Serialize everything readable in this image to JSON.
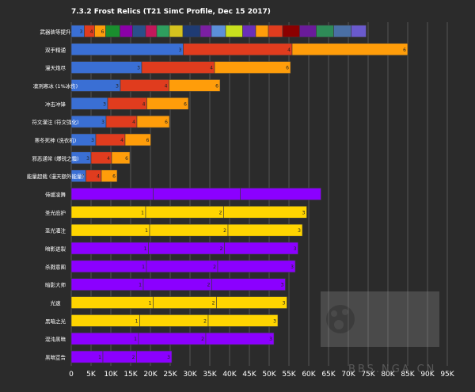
{
  "chart_data": {
    "type": "bar",
    "orientation": "horizontal",
    "stacked": true,
    "title": "7.3.2 Frost Relics (T21 SimC Profile, Dec 15 2017)",
    "xlabel": "",
    "ylabel": "",
    "xlim": [
      0,
      95000
    ],
    "x_ticks": [
      0,
      5000,
      10000,
      15000,
      20000,
      25000,
      30000,
      35000,
      40000,
      45000,
      50000,
      55000,
      60000,
      65000,
      70000,
      75000,
      80000,
      85000,
      90000,
      95000
    ],
    "x_tick_labels": [
      "0",
      "5K",
      "10K",
      "15K",
      "20K",
      "25K",
      "30K",
      "35K",
      "40K",
      "45K",
      "50K",
      "55K",
      "60K",
      "65K",
      "70K",
      "75K",
      "80K",
      "85K",
      "90K",
      "95K"
    ],
    "grid": true,
    "legend": "none",
    "watermark": "BBS.NGA.CN",
    "colors": {
      "background": "#2b2b2b",
      "plot_background": "#2b2b2b",
      "grid": "#555555",
      "text": "#ffffff",
      "purple": "#8b00ff",
      "yellow": "#ffd500",
      "blue": "#3a6fd4",
      "red": "#e03c1e",
      "orange": "#ff9d0a"
    },
    "rows": [
      {
        "label": "武器装等提升",
        "segments": [
          {
            "value": 3300,
            "label": "3",
            "color": "#3a6fd4"
          },
          {
            "value": 2600,
            "label": "4",
            "color": "#e03c1e"
          },
          {
            "value": 2800,
            "label": "6",
            "color": "#ff9d0a"
          },
          {
            "value": 3600,
            "label": "",
            "color": "#1a8f2e"
          },
          {
            "value": 3200,
            "label": "",
            "color": "#8b00a8"
          },
          {
            "value": 3300,
            "label": "",
            "color": "#2a4f8a"
          },
          {
            "value": 2800,
            "label": "",
            "color": "#c2185b"
          },
          {
            "value": 3200,
            "label": "",
            "color": "#2e9e5e"
          },
          {
            "value": 3400,
            "label": "",
            "color": "#d4c21e"
          },
          {
            "value": 4400,
            "label": "",
            "color": "#1f3b73"
          },
          {
            "value": 2800,
            "label": "",
            "color": "#7b1fa2"
          },
          {
            "value": 3600,
            "label": "",
            "color": "#5b8fd9"
          },
          {
            "value": 4300,
            "label": "",
            "color": "#c9e01e"
          },
          {
            "value": 3300,
            "label": "",
            "color": "#6a2fb8"
          },
          {
            "value": 3200,
            "label": "",
            "color": "#ff9d0a"
          },
          {
            "value": 3600,
            "label": "",
            "color": "#e03c1e"
          },
          {
            "value": 4300,
            "label": "",
            "color": "#8b0000"
          },
          {
            "value": 4200,
            "label": "",
            "color": "#6a1b9a"
          },
          {
            "value": 4400,
            "label": "",
            "color": "#2e8b57"
          },
          {
            "value": 4400,
            "label": "",
            "color": "#4a6fa5"
          },
          {
            "value": 3800,
            "label": "",
            "color": "#6a5acd"
          }
        ]
      },
      {
        "label": "双手精通",
        "segments": [
          {
            "value": 28300,
            "label": "3",
            "color": "#3a6fd4"
          },
          {
            "value": 27500,
            "label": "4",
            "color": "#e03c1e"
          },
          {
            "value": 29200,
            "label": "6",
            "color": "#ff9d0a"
          }
        ]
      },
      {
        "label": "漫天炮尽",
        "segments": [
          {
            "value": 17800,
            "label": "3",
            "color": "#3a6fd4"
          },
          {
            "value": 18400,
            "label": "4",
            "color": "#e03c1e"
          },
          {
            "value": 19200,
            "label": "6",
            "color": "#ff9d0a"
          }
        ]
      },
      {
        "label": "凛冽寒冰 (1%冰伤)",
        "segments": [
          {
            "value": 12400,
            "label": "3",
            "color": "#3a6fd4"
          },
          {
            "value": 12300,
            "label": "4",
            "color": "#e03c1e"
          },
          {
            "value": 12900,
            "label": "6",
            "color": "#ff9d0a"
          }
        ]
      },
      {
        "label": "冲击冲锋",
        "segments": [
          {
            "value": 9200,
            "label": "3",
            "color": "#3a6fd4"
          },
          {
            "value": 9900,
            "label": "4",
            "color": "#e03c1e"
          },
          {
            "value": 10500,
            "label": "6",
            "color": "#ff9d0a"
          }
        ]
      },
      {
        "label": "符文灌注 (符文强化)",
        "segments": [
          {
            "value": 8800,
            "label": "3",
            "color": "#3a6fd4"
          },
          {
            "value": 7800,
            "label": "4",
            "color": "#e03c1e"
          },
          {
            "value": 8200,
            "label": "6",
            "color": "#ff9d0a"
          }
        ]
      },
      {
        "label": "寒冬死神 (洗衣机)",
        "segments": [
          {
            "value": 6200,
            "label": "3",
            "color": "#3a6fd4"
          },
          {
            "value": 7400,
            "label": "4",
            "color": "#e03c1e"
          },
          {
            "value": 6500,
            "label": "6",
            "color": "#ff9d0a"
          }
        ]
      },
      {
        "label": "邪恶通常 (爆锐之霜)",
        "segments": [
          {
            "value": 5000,
            "label": "3",
            "color": "#3a6fd4"
          },
          {
            "value": 5200,
            "label": "4",
            "color": "#e03c1e"
          },
          {
            "value": 4600,
            "label": "6",
            "color": "#ff9d0a"
          }
        ]
      },
      {
        "label": "能量超载 (漫天额外能量)",
        "segments": [
          {
            "value": 3700,
            "label": "3",
            "color": "#3a6fd4"
          },
          {
            "value": 3900,
            "label": "4",
            "color": "#e03c1e"
          },
          {
            "value": 4000,
            "label": "6",
            "color": "#ff9d0a"
          }
        ]
      },
      {
        "label": "侍援凌舞",
        "segments": [
          {
            "value": 20700,
            "label": "",
            "color": "#8b00ff"
          },
          {
            "value": 22000,
            "label": "",
            "color": "#8b00ff"
          },
          {
            "value": 20400,
            "label": "",
            "color": "#8b00ff"
          }
        ]
      },
      {
        "label": "圣光庇护",
        "segments": [
          {
            "value": 18800,
            "label": "1",
            "color": "#ffd500"
          },
          {
            "value": 19700,
            "label": "2",
            "color": "#ffd500"
          },
          {
            "value": 21000,
            "label": "3",
            "color": "#ffd500"
          }
        ]
      },
      {
        "label": "圣光灌注",
        "segments": [
          {
            "value": 19800,
            "label": "1",
            "color": "#ffd500"
          },
          {
            "value": 19800,
            "label": "2",
            "color": "#ffd500"
          },
          {
            "value": 18800,
            "label": "3",
            "color": "#ffd500"
          }
        ]
      },
      {
        "label": "暗影迸裂",
        "segments": [
          {
            "value": 19500,
            "label": "1",
            "color": "#8b00ff"
          },
          {
            "value": 19200,
            "label": "2",
            "color": "#8b00ff"
          },
          {
            "value": 18600,
            "label": "3",
            "color": "#8b00ff"
          }
        ]
      },
      {
        "label": "杀戮意图",
        "segments": [
          {
            "value": 19000,
            "label": "1",
            "color": "#8b00ff"
          },
          {
            "value": 18000,
            "label": "2",
            "color": "#8b00ff"
          },
          {
            "value": 19600,
            "label": "3",
            "color": "#8b00ff"
          }
        ]
      },
      {
        "label": "暗影大师",
        "segments": [
          {
            "value": 18200,
            "label": "1",
            "color": "#8b00ff"
          },
          {
            "value": 17300,
            "label": "2",
            "color": "#8b00ff"
          },
          {
            "value": 18600,
            "label": "3",
            "color": "#8b00ff"
          }
        ]
      },
      {
        "label": "光速",
        "segments": [
          {
            "value": 20700,
            "label": "1",
            "color": "#ffd500"
          },
          {
            "value": 16000,
            "label": "2",
            "color": "#ffd500"
          },
          {
            "value": 17800,
            "label": "3",
            "color": "#ffd500"
          }
        ]
      },
      {
        "label": "黑暗之光",
        "segments": [
          {
            "value": 17300,
            "label": "1",
            "color": "#ffd500"
          },
          {
            "value": 17300,
            "label": "2",
            "color": "#ffd500"
          },
          {
            "value": 17600,
            "label": "3",
            "color": "#ffd500"
          }
        ]
      },
      {
        "label": "混沌黑暗",
        "segments": [
          {
            "value": 17000,
            "label": "1",
            "color": "#8b00ff"
          },
          {
            "value": 17000,
            "label": "2",
            "color": "#8b00ff"
          },
          {
            "value": 17200,
            "label": "3",
            "color": "#8b00ff"
          }
        ]
      },
      {
        "label": "黑暗宣告",
        "segments": [
          {
            "value": 8000,
            "label": "1",
            "color": "#8b00ff"
          },
          {
            "value": 8500,
            "label": "2",
            "color": "#8b00ff"
          },
          {
            "value": 8900,
            "label": "3",
            "color": "#8b00ff"
          }
        ]
      }
    ]
  }
}
